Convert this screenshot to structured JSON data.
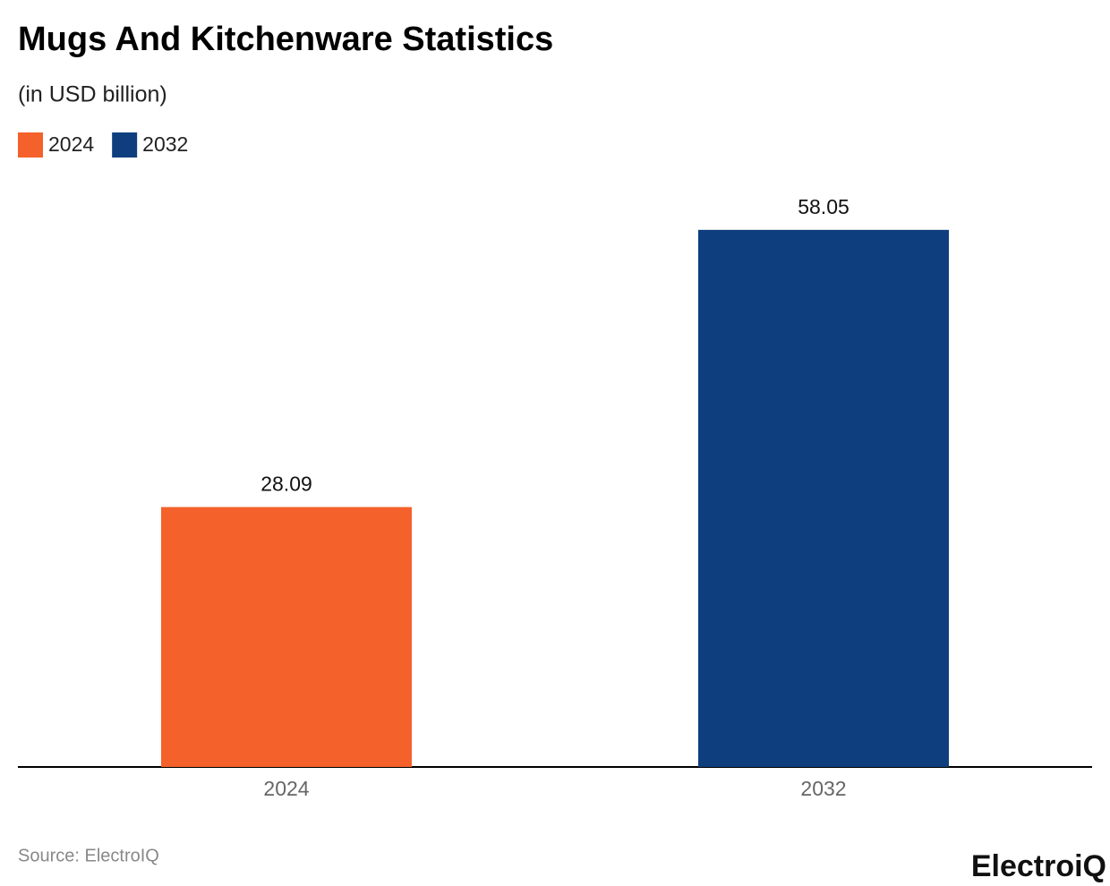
{
  "chart_data": {
    "type": "bar",
    "title": "Mugs And Kitchenware Statistics",
    "subtitle": "(in USD billion)",
    "categories": [
      "2024",
      "2032"
    ],
    "values": [
      28.09,
      58.05
    ],
    "colors": [
      "#f4612a",
      "#0f3e7e"
    ],
    "ylim": [
      0,
      62
    ],
    "source": "Source: ElectroIQ",
    "brand": "ElectroiQ"
  }
}
